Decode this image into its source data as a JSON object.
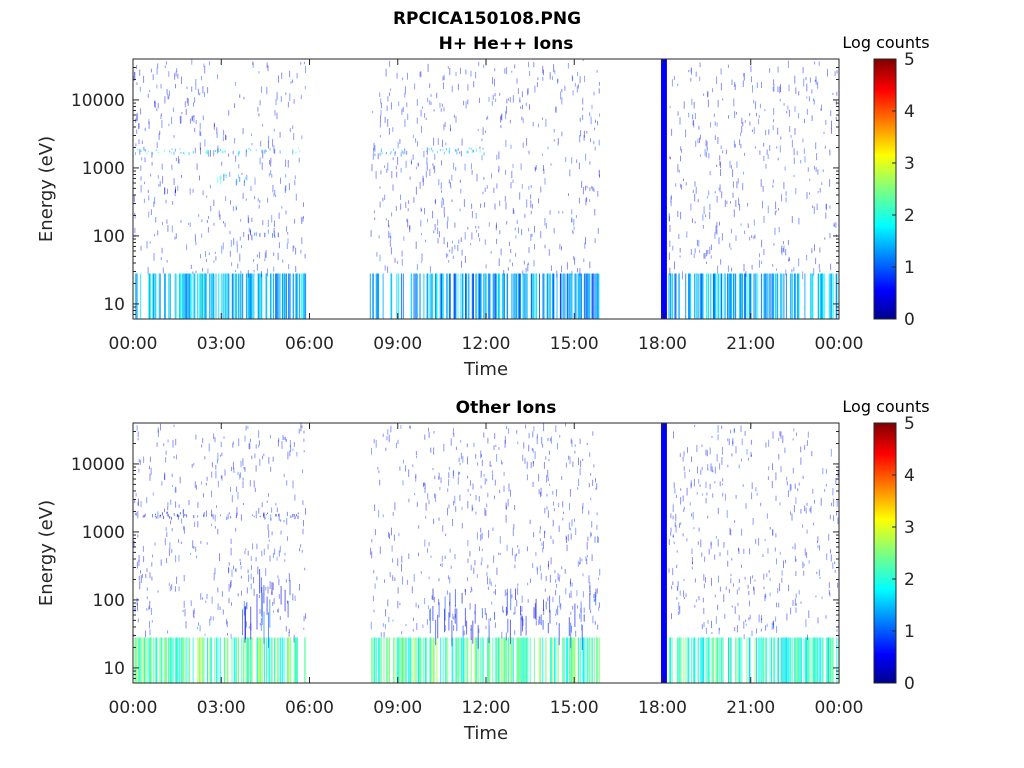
{
  "page_title": "RPCICA150108.PNG",
  "chart_data": [
    {
      "type": "heatmap",
      "title": "H+ He++ Ions",
      "xlabel": "Time",
      "ylabel": "Energy (eV)",
      "x_ticks": [
        "00:00",
        "03:00",
        "06:00",
        "09:00",
        "12:00",
        "15:00",
        "18:00",
        "21:00",
        "00:00"
      ],
      "x_range_hours": [
        0,
        24
      ],
      "y_scale": "log",
      "y_ticks": [
        10,
        100,
        1000,
        10000
      ],
      "y_tick_labels": [
        "10",
        "100",
        "1000",
        "10000"
      ],
      "y_range_eV": [
        6,
        40000
      ],
      "colorbar": {
        "label": "Log counts",
        "range": [
          0,
          5
        ],
        "ticks": [
          "0",
          "1",
          "2",
          "3",
          "4",
          "5"
        ],
        "colormap": "jet"
      },
      "data_gaps_hours": [
        [
          5.85,
          8.05
        ],
        [
          15.85,
          18.0
        ]
      ],
      "approx_features": [
        {
          "desc": "low energy band",
          "t": [
            0,
            5.85
          ],
          "e": [
            6,
            28
          ],
          "log_counts": 1.6
        },
        {
          "desc": "low energy band",
          "t": [
            8.05,
            15.85
          ],
          "e": [
            6,
            28
          ],
          "log_counts": 1.4
        },
        {
          "desc": "low energy band",
          "t": [
            18.2,
            24
          ],
          "e": [
            6,
            28
          ],
          "log_counts": 1.5
        },
        {
          "desc": "band ~1700 eV",
          "t": [
            0,
            5.85
          ],
          "e": [
            1600,
            2000
          ],
          "log_counts": 1.8
        },
        {
          "desc": "band ~1700 eV",
          "t": [
            8.05,
            12.0
          ],
          "e": [
            1600,
            2000
          ],
          "log_counts": 1.6
        },
        {
          "desc": "patch ~700 eV",
          "t": [
            2.8,
            3.9
          ],
          "e": [
            600,
            850
          ],
          "log_counts": 2.0
        },
        {
          "desc": "patch ~110 eV",
          "t": [
            3.9,
            5.0
          ],
          "e": [
            90,
            130
          ],
          "log_counts": 0.9
        },
        {
          "desc": "spike",
          "t": [
            17.95,
            18.15
          ],
          "e": [
            6,
            40000
          ],
          "log_counts": 0.6
        }
      ]
    },
    {
      "type": "heatmap",
      "title": "Other Ions",
      "xlabel": "Time",
      "ylabel": "Energy (eV)",
      "x_ticks": [
        "00:00",
        "03:00",
        "06:00",
        "09:00",
        "12:00",
        "15:00",
        "18:00",
        "21:00",
        "00:00"
      ],
      "x_range_hours": [
        0,
        24
      ],
      "y_scale": "log",
      "y_ticks": [
        10,
        100,
        1000,
        10000
      ],
      "y_tick_labels": [
        "10",
        "100",
        "1000",
        "10000"
      ],
      "y_range_eV": [
        6,
        40000
      ],
      "colorbar": {
        "label": "Log counts",
        "range": [
          0,
          5
        ],
        "ticks": [
          "0",
          "1",
          "2",
          "3",
          "4",
          "5"
        ],
        "colormap": "jet"
      },
      "data_gaps_hours": [
        [
          5.85,
          8.05
        ],
        [
          15.85,
          18.0
        ]
      ],
      "approx_features": [
        {
          "desc": "low energy band",
          "t": [
            0,
            5.85
          ],
          "e": [
            6,
            28
          ],
          "log_counts": 2.3
        },
        {
          "desc": "low energy band",
          "t": [
            8.05,
            15.85
          ],
          "e": [
            6,
            28
          ],
          "log_counts": 2.3
        },
        {
          "desc": "low energy band",
          "t": [
            18.2,
            24
          ],
          "e": [
            6,
            28
          ],
          "log_counts": 2.1
        },
        {
          "desc": "scattered 30-300 eV",
          "t": [
            3.5,
            5.5
          ],
          "e": [
            30,
            300
          ],
          "log_counts": 0.8
        },
        {
          "desc": "scattered 30-300 eV",
          "t": [
            10.0,
            15.8
          ],
          "e": [
            30,
            150
          ],
          "log_counts": 0.7
        },
        {
          "desc": "band ~1700 eV",
          "t": [
            0,
            5.85
          ],
          "e": [
            1600,
            2000
          ],
          "log_counts": 0.6
        },
        {
          "desc": "spike",
          "t": [
            17.95,
            18.15
          ],
          "e": [
            6,
            40000
          ],
          "log_counts": 0.6
        }
      ]
    }
  ]
}
